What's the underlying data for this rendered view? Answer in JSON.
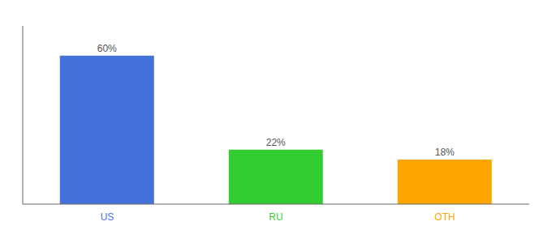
{
  "chart_data": {
    "type": "bar",
    "categories": [
      "US",
      "RU",
      "OTH"
    ],
    "values": [
      60,
      22,
      18
    ],
    "value_labels": [
      "60%",
      "22%",
      "18%"
    ],
    "colors": [
      "#4472DB",
      "#33CC33",
      "#FFA500"
    ],
    "ylim": [
      0,
      72
    ],
    "yticks": [],
    "data_labels": true,
    "tick_labels": "x",
    "grid": false
  }
}
